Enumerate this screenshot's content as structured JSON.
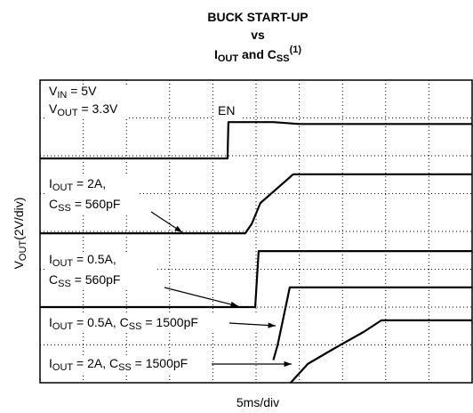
{
  "chart_data": {
    "type": "line",
    "title": [
      [
        {
          "text": "BUCK START-UP"
        }
      ],
      [
        {
          "text": "vs"
        }
      ],
      [
        {
          "text": "I"
        },
        {
          "text": "OUT",
          "style": "sub"
        },
        {
          "text": " and C"
        },
        {
          "text": "SS",
          "style": "sub"
        },
        {
          "text": "(1)",
          "style": "sup"
        }
      ]
    ],
    "x_label": [
      {
        "text": "5ms/div"
      }
    ],
    "y_label": [
      {
        "text": "V"
      },
      {
        "text": "OUT",
        "style": "sub"
      },
      {
        "text": "(2V/div)"
      }
    ],
    "annotations": [
      [
        {
          "text": "V"
        },
        {
          "text": "IN",
          "style": "sub"
        },
        {
          "text": " = 5V"
        }
      ],
      [
        {
          "text": "V"
        },
        {
          "text": "OUT",
          "style": "sub"
        },
        {
          "text": " = 3.3V"
        }
      ],
      [
        {
          "text": "EN"
        }
      ],
      [
        {
          "text": "I"
        },
        {
          "text": "OUT",
          "style": "sub"
        },
        {
          "text": " = 2A,"
        }
      ],
      [
        {
          "text": "C"
        },
        {
          "text": "SS",
          "style": "sub"
        },
        {
          "text": " = 560pF"
        }
      ],
      [
        {
          "text": "I"
        },
        {
          "text": "OUT",
          "style": "sub"
        },
        {
          "text": " = 0.5A,"
        }
      ],
      [
        {
          "text": "C"
        },
        {
          "text": "SS",
          "style": "sub"
        },
        {
          "text": " = 560pF"
        }
      ],
      [
        {
          "text": "I"
        },
        {
          "text": "OUT",
          "style": "sub"
        },
        {
          "text": " = 0.5A, C"
        },
        {
          "text": "SS",
          "style": "sub"
        },
        {
          "text": " = 1500pF"
        }
      ],
      [
        {
          "text": "I"
        },
        {
          "text": "OUT",
          "style": "sub"
        },
        {
          "text": " = 2A, C"
        },
        {
          "text": "SS",
          "style": "sub"
        },
        {
          "text": " = 1500pF"
        }
      ]
    ],
    "xlim": [
      0,
      10
    ],
    "ylim": [
      0,
      8
    ],
    "xticks": [
      0,
      1,
      2,
      3,
      4,
      5,
      6,
      7,
      8,
      9,
      10
    ],
    "yticks": [
      0,
      1,
      2,
      3,
      4,
      5,
      6,
      7,
      8
    ],
    "grid": true,
    "series": [
      {
        "color": "#000000",
        "x": [
          0,
          4.34,
          4.36,
          5.4,
          6.0,
          10
        ],
        "values": [
          5.93,
          5.93,
          6.89,
          6.89,
          6.84,
          6.84
        ]
      },
      {
        "color": "#000000",
        "x": [
          0,
          4.75,
          4.9,
          5.1,
          5.86,
          10
        ],
        "values": [
          3.95,
          3.95,
          4.2,
          4.75,
          5.51,
          5.51
        ]
      },
      {
        "color": "#000000",
        "x": [
          0,
          4.98,
          5.06,
          10
        ],
        "values": [
          2.0,
          2.0,
          3.48,
          3.48
        ]
      },
      {
        "color": "#000000",
        "x": [
          5.4,
          5.5,
          5.78,
          10
        ],
        "values": [
          0.6,
          1.0,
          2.52,
          2.52
        ]
      },
      {
        "color": "#000000",
        "x": [
          5.8,
          6.2,
          6.8,
          7.5,
          7.9,
          10
        ],
        "values": [
          0,
          0.5,
          0.9,
          1.35,
          1.65,
          1.65
        ]
      }
    ]
  }
}
